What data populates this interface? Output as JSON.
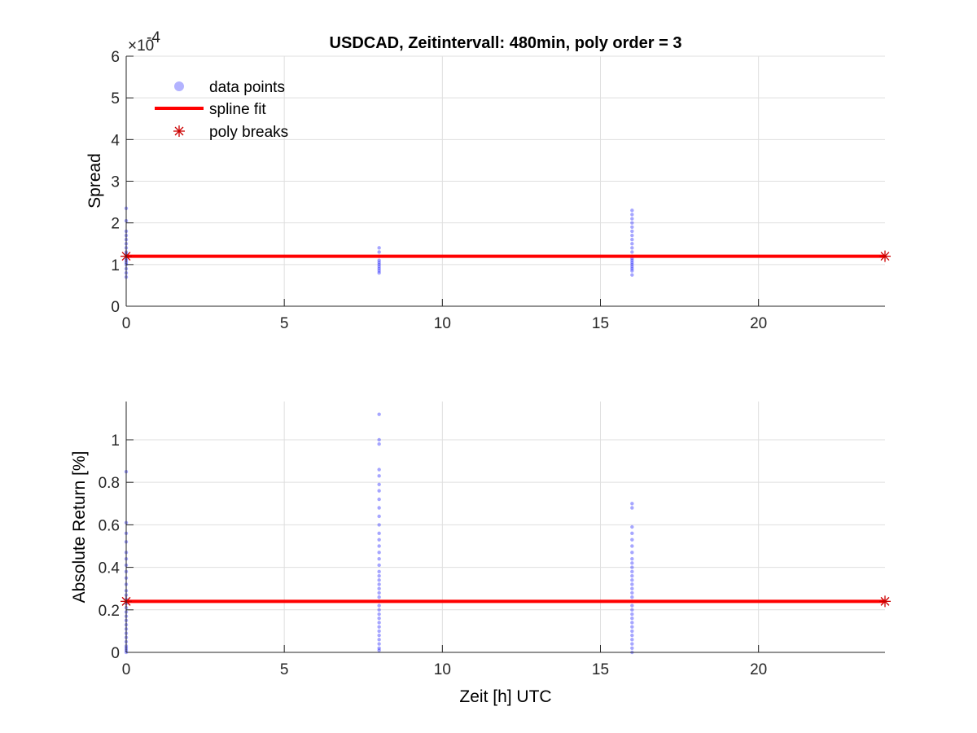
{
  "colors": {
    "background": "#ffffff",
    "grid": "#dfdfdf",
    "axis": "#262626",
    "points": "#0000ff",
    "fit": "#ff0000",
    "breaks": "#cc0000"
  },
  "chart_data": [
    {
      "type": "scatter",
      "title": "USDCAD, Zeitintervall: 480min, poly order = 3",
      "xlabel": "",
      "ylabel": "Spread",
      "exponent_label": "×10",
      "exponent_power": "-4",
      "xlim": [
        0,
        24
      ],
      "ylim": [
        0,
        6
      ],
      "xticks": [
        "0",
        "5",
        "10",
        "15",
        "20"
      ],
      "yticks": [
        "0",
        "1",
        "2",
        "3",
        "4",
        "5",
        "6"
      ],
      "grid": true,
      "legend": {
        "placement": "top-left",
        "entries": [
          "data points",
          "spline fit",
          "poly breaks"
        ]
      },
      "series": [
        {
          "name": "data points",
          "x": 0,
          "y": [
            0.7,
            0.8,
            0.9,
            1.0,
            1.05,
            1.1,
            1.15,
            1.2,
            1.25,
            1.3,
            1.4,
            1.5,
            1.6,
            1.7,
            1.8,
            2.05,
            2.35
          ]
        },
        {
          "name": "data points",
          "x": 8,
          "y": [
            0.8,
            0.85,
            0.9,
            0.95,
            1.0,
            1.05,
            1.1,
            1.2,
            1.3,
            1.4
          ]
        },
        {
          "name": "data points",
          "x": 16,
          "y": [
            0.75,
            0.85,
            0.9,
            0.95,
            1.0,
            1.05,
            1.1,
            1.15,
            1.2,
            1.3,
            1.4,
            1.5,
            1.6,
            1.7,
            1.8,
            1.9,
            2.0,
            2.1,
            2.2,
            2.3
          ]
        },
        {
          "name": "spline fit",
          "x": [
            0,
            24
          ],
          "y": [
            1.2,
            1.2
          ]
        },
        {
          "name": "poly breaks",
          "x": [
            0,
            24
          ],
          "y": [
            1.2,
            1.2
          ]
        }
      ]
    },
    {
      "type": "scatter",
      "title": "",
      "xlabel": "Zeit [h] UTC",
      "ylabel": "Absolute Return [%]",
      "xlim": [
        0,
        24
      ],
      "ylim": [
        0,
        1.18
      ],
      "xticks": [
        "0",
        "5",
        "10",
        "15",
        "20"
      ],
      "yticks": [
        "0",
        "0.2",
        "0.4",
        "0.6",
        "0.8",
        "1"
      ],
      "grid": true,
      "series": [
        {
          "name": "data points",
          "x": 0,
          "y": [
            0.0,
            0.01,
            0.02,
            0.03,
            0.05,
            0.07,
            0.09,
            0.11,
            0.13,
            0.15,
            0.17,
            0.19,
            0.21,
            0.23,
            0.25,
            0.27,
            0.29,
            0.32,
            0.35,
            0.38,
            0.41,
            0.44,
            0.47,
            0.52,
            0.56,
            0.61,
            0.85
          ]
        },
        {
          "name": "data points",
          "x": 8,
          "y": [
            0.01,
            0.02,
            0.04,
            0.06,
            0.08,
            0.1,
            0.12,
            0.14,
            0.16,
            0.18,
            0.2,
            0.22,
            0.24,
            0.26,
            0.28,
            0.3,
            0.32,
            0.34,
            0.36,
            0.38,
            0.41,
            0.44,
            0.47,
            0.5,
            0.53,
            0.56,
            0.6,
            0.64,
            0.68,
            0.72,
            0.76,
            0.79,
            0.83,
            0.86,
            0.98,
            1.0,
            1.12
          ]
        },
        {
          "name": "data points",
          "x": 16,
          "y": [
            0.0,
            0.02,
            0.04,
            0.06,
            0.08,
            0.1,
            0.12,
            0.14,
            0.16,
            0.18,
            0.2,
            0.22,
            0.24,
            0.26,
            0.28,
            0.3,
            0.32,
            0.34,
            0.36,
            0.38,
            0.4,
            0.42,
            0.44,
            0.47,
            0.5,
            0.53,
            0.56,
            0.59,
            0.68,
            0.7
          ]
        },
        {
          "name": "spline fit",
          "x": [
            0,
            24
          ],
          "y": [
            0.24,
            0.24
          ]
        },
        {
          "name": "poly breaks",
          "x": [
            0,
            24
          ],
          "y": [
            0.24,
            0.24
          ]
        }
      ]
    }
  ]
}
